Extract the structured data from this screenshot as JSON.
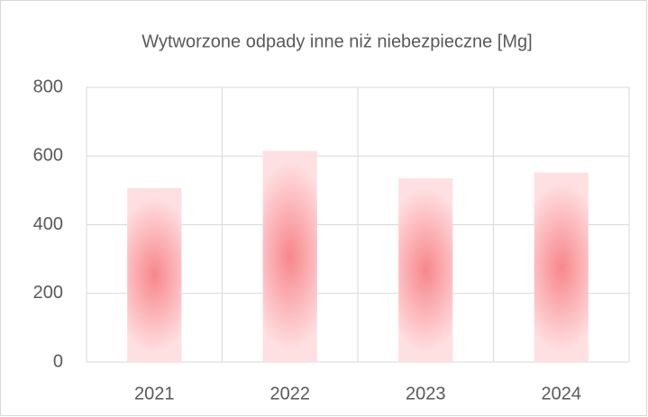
{
  "chart_data": {
    "type": "bar",
    "title": "Wytworzone odpady inne niż niebezpieczne [Mg]",
    "categories": [
      "2021",
      "2022",
      "2023",
      "2024"
    ],
    "values": [
      507,
      615,
      535,
      552
    ],
    "color": "#f7878c",
    "ylim": [
      0,
      800
    ],
    "yticks": [
      0,
      200,
      400,
      600,
      800
    ],
    "grid": true,
    "vertical_grid": true
  }
}
